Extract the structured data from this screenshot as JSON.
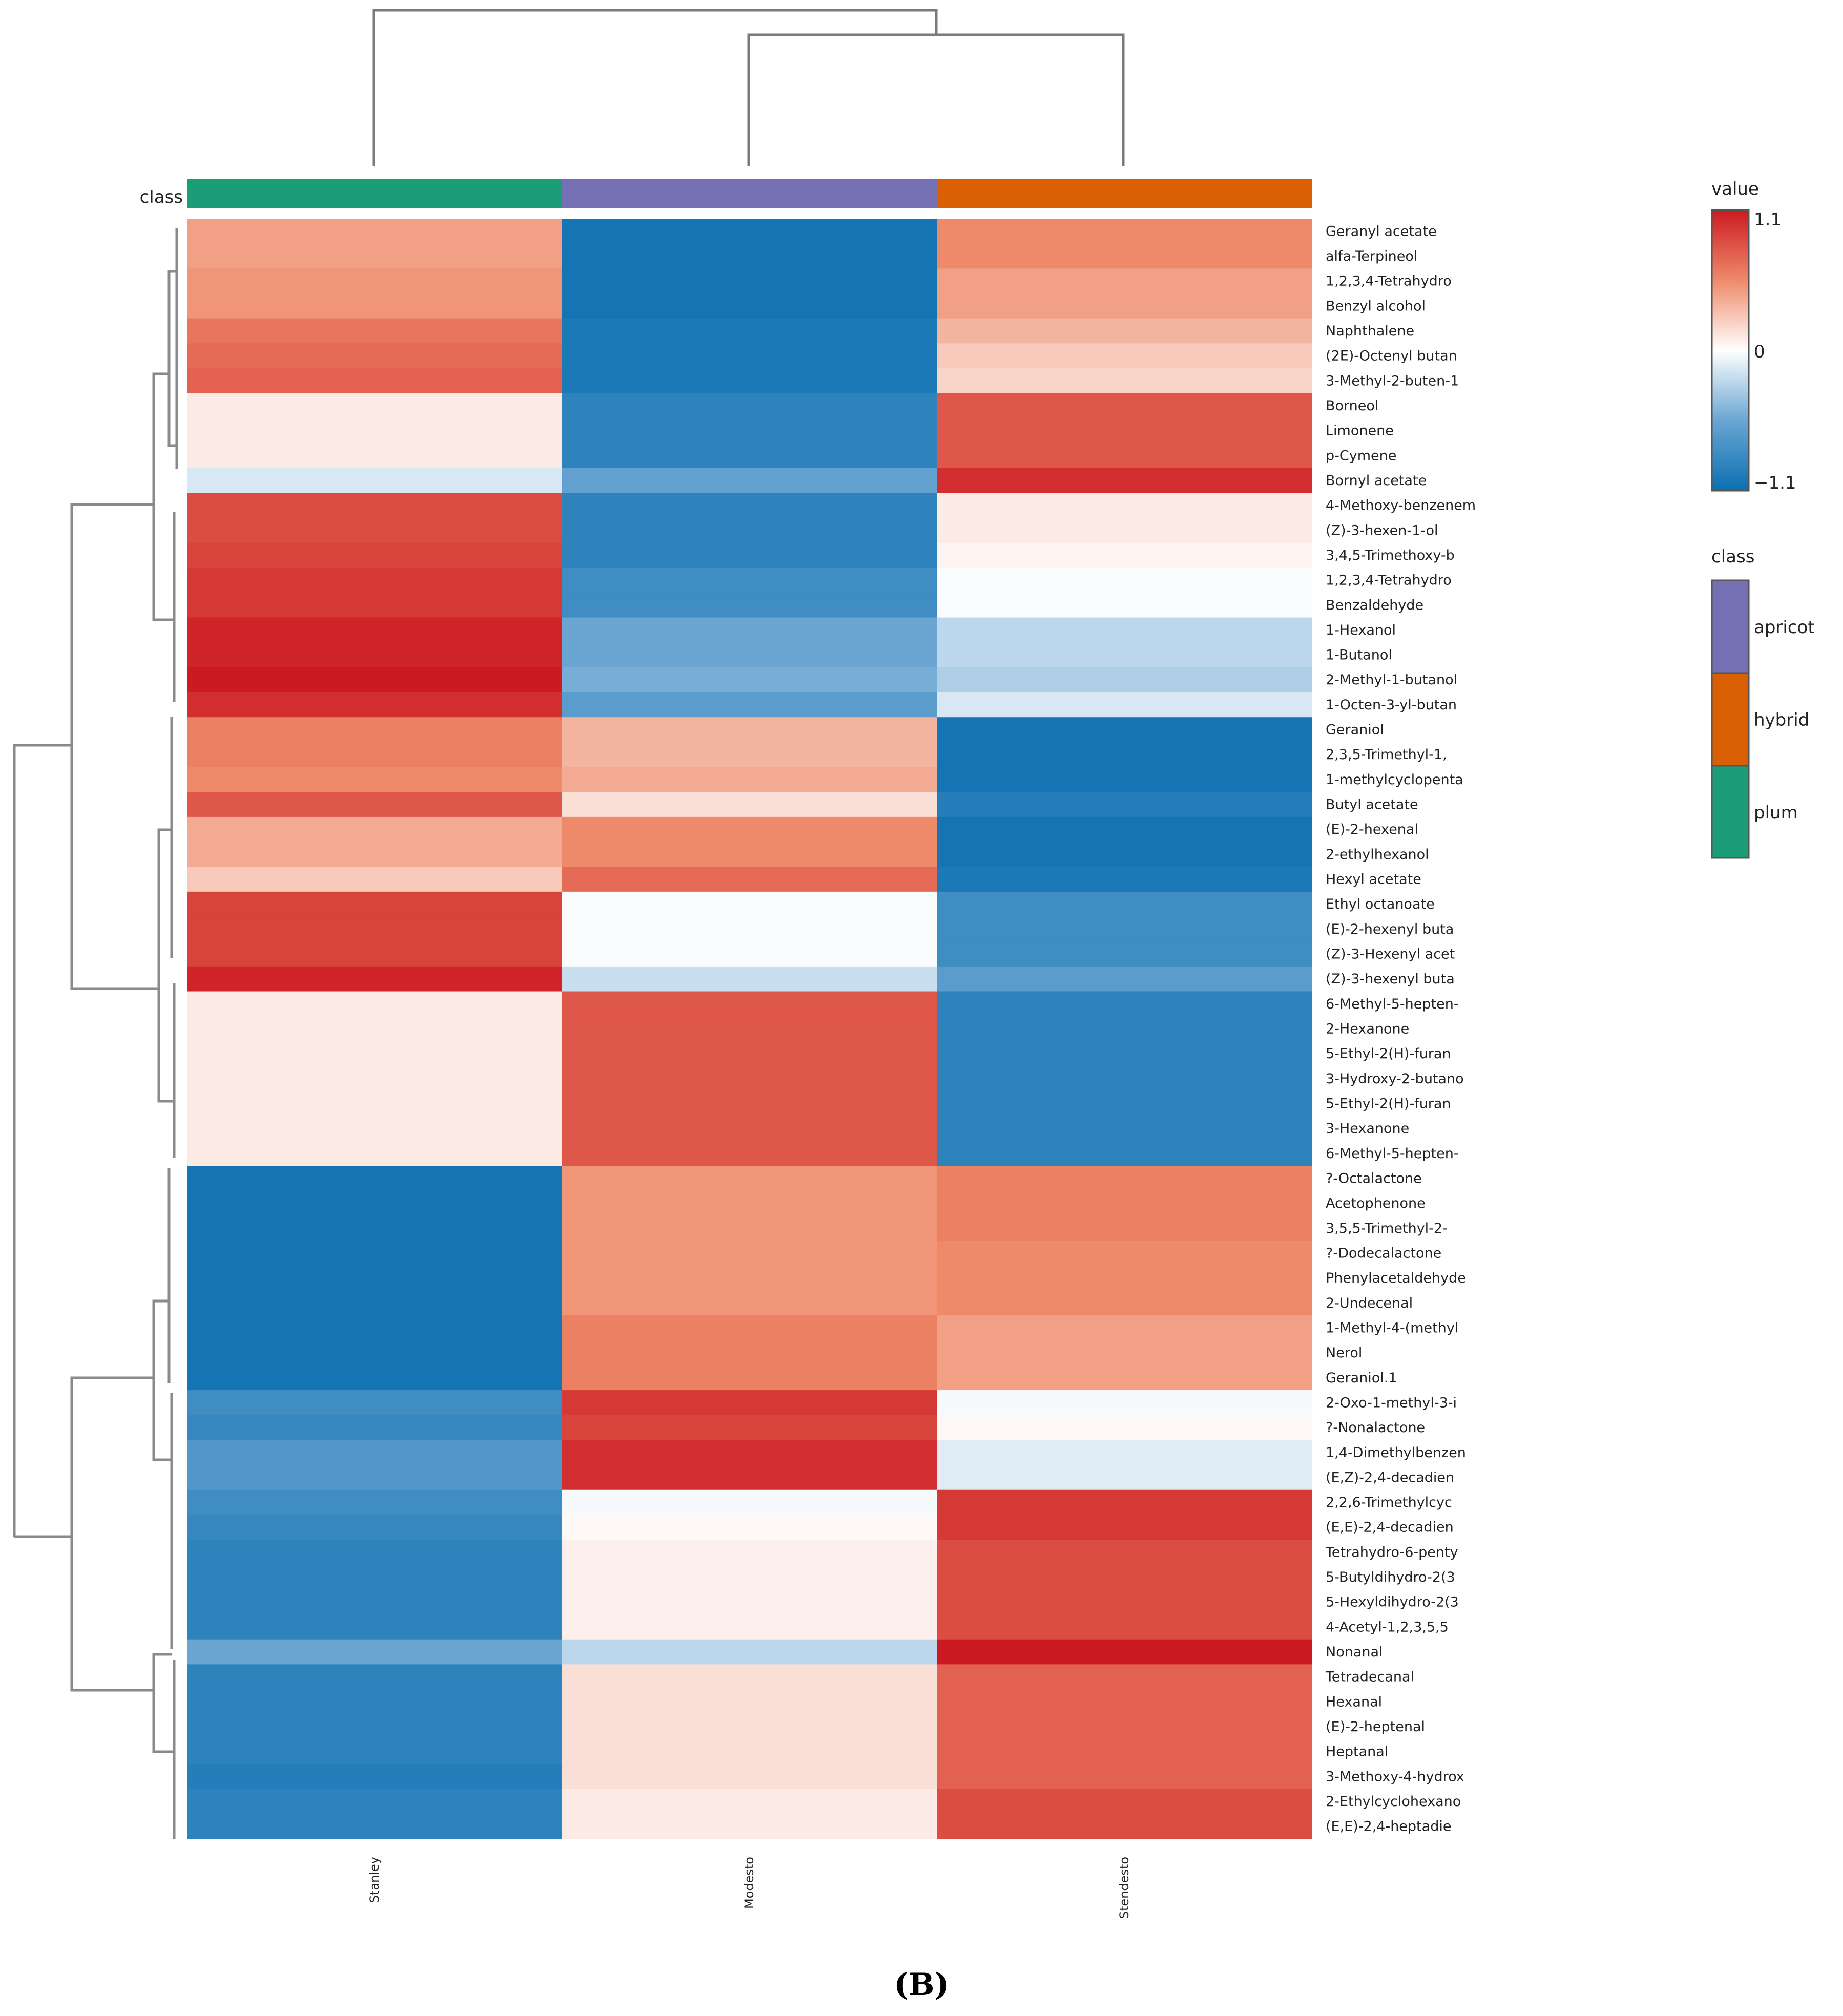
{
  "panel_label": "(B)",
  "chart_data": {
    "type": "heatmap",
    "columns": [
      "Stanley",
      "Modesto",
      "Stendesto"
    ],
    "class_bar": {
      "title": "class",
      "values": [
        "plum",
        "apricot",
        "hybrid"
      ]
    },
    "rows": [
      "Geranyl acetate",
      "alfa-Terpineol",
      "1,2,3,4-Tetrahydro",
      "Benzyl alcohol",
      "Naphthalene",
      "(2E)-Octenyl butan",
      "3-Methyl-2-buten-1",
      "Borneol",
      "Limonene",
      "p-Cymene",
      "Bornyl acetate",
      "4-Methoxy-benzenem",
      "(Z)-3-hexen-1-ol",
      "3,4,5-Trimethoxy-b",
      "1,2,3,4-Tetrahydro",
      "Benzaldehyde",
      "1-Hexanol",
      "1-Butanol",
      "2-Methyl-1-butanol",
      "1-Octen-3-yl-butan",
      "Geraniol",
      "2,3,5-Trimethyl-1,",
      "1-methylcyclopenta",
      "Butyl acetate",
      "(E)-2-hexenal",
      "2-ethylhexanol",
      "Hexyl acetate",
      "Ethyl octanoate",
      "(E)-2-hexenyl buta",
      "(Z)-3-Hexenyl acet",
      "(Z)-3-hexenyl buta",
      "6-Methyl-5-hepten-",
      "2-Hexanone",
      "5-Ethyl-2(H)-furan",
      "3-Hydroxy-2-butano",
      "5-Ethyl-2(H)-furan",
      "3-Hexanone",
      "6-Methyl-5-hepten-",
      "?-Octalactone",
      "Acetophenone",
      "3,5,5-Trimethyl-2-",
      "?-Dodecalactone",
      "Phenylacetaldehyde",
      "2-Undecenal",
      "1-Methyl-4-(methyl",
      "Nerol",
      "Geraniol.1",
      "2-Oxo-1-methyl-3-i",
      "?-Nonalactone",
      "1,4-Dimethylbenzen",
      "(E,Z)-2,4-decadien",
      "2,2,6-Trimethylcyc",
      "(E,E)-2,4-decadien",
      "Tetrahydro-6-penty",
      "5-Butyldihydro-2(3",
      "5-Hexyldihydro-2(3",
      "4-Acetyl-1,2,3,5,5",
      "Nonanal",
      "Tetradecanal",
      "Hexanal",
      "(E)-2-heptenal",
      "Heptanal",
      "3-Methoxy-4-hydrox",
      "2-Ethylcyclohexano",
      "(E,E)-2,4-heptadie"
    ],
    "values": [
      [
        0.45,
        -1.05,
        0.55
      ],
      [
        0.45,
        -1.05,
        0.55
      ],
      [
        0.5,
        -1.05,
        0.45
      ],
      [
        0.5,
        -1.05,
        0.45
      ],
      [
        0.65,
        -1.0,
        0.35
      ],
      [
        0.7,
        -1.0,
        0.25
      ],
      [
        0.75,
        -1.0,
        0.2
      ],
      [
        0.1,
        -0.9,
        0.8
      ],
      [
        0.1,
        -0.9,
        0.8
      ],
      [
        0.1,
        -0.9,
        0.8
      ],
      [
        -0.15,
        -0.6,
        1.0
      ],
      [
        0.85,
        -0.9,
        0.1
      ],
      [
        0.85,
        -0.9,
        0.1
      ],
      [
        0.9,
        -0.9,
        0.05
      ],
      [
        0.95,
        -0.8,
        -0.02
      ],
      [
        0.95,
        -0.8,
        -0.02
      ],
      [
        1.05,
        -0.55,
        -0.25
      ],
      [
        1.05,
        -0.55,
        -0.25
      ],
      [
        1.1,
        -0.5,
        -0.3
      ],
      [
        1.0,
        -0.65,
        -0.15
      ],
      [
        0.6,
        0.35,
        -1.05
      ],
      [
        0.6,
        0.35,
        -1.05
      ],
      [
        0.55,
        0.4,
        -1.05
      ],
      [
        0.8,
        0.15,
        -0.95
      ],
      [
        0.4,
        0.55,
        -1.05
      ],
      [
        0.4,
        0.55,
        -1.05
      ],
      [
        0.25,
        0.7,
        -1.0
      ],
      [
        0.9,
        -0.02,
        -0.8
      ],
      [
        0.9,
        -0.02,
        -0.8
      ],
      [
        0.9,
        -0.02,
        -0.8
      ],
      [
        1.05,
        -0.2,
        -0.65
      ],
      [
        0.1,
        0.8,
        -0.9
      ],
      [
        0.1,
        0.8,
        -0.9
      ],
      [
        0.1,
        0.8,
        -0.9
      ],
      [
        0.1,
        0.8,
        -0.9
      ],
      [
        0.1,
        0.8,
        -0.9
      ],
      [
        0.1,
        0.8,
        -0.9
      ],
      [
        0.1,
        0.8,
        -0.9
      ],
      [
        -1.05,
        0.5,
        0.6
      ],
      [
        -1.05,
        0.5,
        0.6
      ],
      [
        -1.05,
        0.5,
        0.6
      ],
      [
        -1.05,
        0.5,
        0.55
      ],
      [
        -1.05,
        0.5,
        0.55
      ],
      [
        -1.05,
        0.5,
        0.55
      ],
      [
        -1.05,
        0.6,
        0.45
      ],
      [
        -1.05,
        0.6,
        0.45
      ],
      [
        -1.05,
        0.6,
        0.45
      ],
      [
        -0.8,
        0.95,
        -0.03
      ],
      [
        -0.85,
        0.9,
        0.03
      ],
      [
        -0.7,
        1.0,
        -0.12
      ],
      [
        -0.7,
        1.0,
        -0.12
      ],
      [
        -0.8,
        -0.03,
        0.95
      ],
      [
        -0.85,
        0.03,
        0.95
      ],
      [
        -0.9,
        0.07,
        0.85
      ],
      [
        -0.9,
        0.07,
        0.85
      ],
      [
        -0.9,
        0.07,
        0.85
      ],
      [
        -0.9,
        0.07,
        0.85
      ],
      [
        -0.55,
        -0.25,
        1.1
      ],
      [
        -0.9,
        0.15,
        0.75
      ],
      [
        -0.9,
        0.15,
        0.75
      ],
      [
        -0.9,
        0.15,
        0.75
      ],
      [
        -0.9,
        0.15,
        0.75
      ],
      [
        -0.95,
        0.15,
        0.75
      ],
      [
        -0.9,
        0.1,
        0.85
      ],
      [
        -0.9,
        0.1,
        0.85
      ]
    ],
    "color_scale": {
      "title": "value",
      "min": -1.1,
      "max": 1.1,
      "tick_labels": [
        "1.1",
        "0",
        "−1.1"
      ],
      "low_color": "#0b6fb1",
      "mid_color": "#ffffff",
      "high_color": "#cc1a22"
    },
    "class_legend": {
      "title": "class",
      "entries": [
        {
          "label": "apricot",
          "color": "#7570b3"
        },
        {
          "label": "hybrid",
          "color": "#d95f02"
        },
        {
          "label": "plum",
          "color": "#1b9e77"
        }
      ]
    }
  }
}
